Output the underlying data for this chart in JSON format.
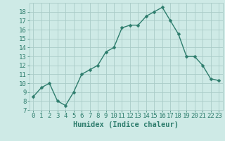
{
  "x": [
    0,
    1,
    2,
    3,
    4,
    5,
    6,
    7,
    8,
    9,
    10,
    11,
    12,
    13,
    14,
    15,
    16,
    17,
    18,
    19,
    20,
    21,
    22,
    23
  ],
  "y": [
    8.5,
    9.5,
    10.0,
    8.0,
    7.5,
    9.0,
    11.0,
    11.5,
    12.0,
    13.5,
    14.0,
    16.2,
    16.5,
    16.5,
    17.5,
    18.0,
    18.5,
    17.0,
    15.5,
    13.0,
    13.0,
    12.0,
    10.5,
    10.3
  ],
  "xlabel": "Humidex (Indice chaleur)",
  "line_color": "#2e7d6d",
  "marker_color": "#2e7d6d",
  "bg_color": "#ceeae6",
  "grid_color": "#aaccc8",
  "tick_color": "#2e7d6d",
  "xlim": [
    -0.5,
    23.5
  ],
  "ylim": [
    7,
    19
  ],
  "yticks": [
    7,
    8,
    9,
    10,
    11,
    12,
    13,
    14,
    15,
    16,
    17,
    18
  ],
  "xticks": [
    0,
    1,
    2,
    3,
    4,
    5,
    6,
    7,
    8,
    9,
    10,
    11,
    12,
    13,
    14,
    15,
    16,
    17,
    18,
    19,
    20,
    21,
    22,
    23
  ],
  "xlabel_fontsize": 7.5,
  "tick_fontsize": 6.5,
  "line_width": 1.0,
  "marker_size": 2.5
}
